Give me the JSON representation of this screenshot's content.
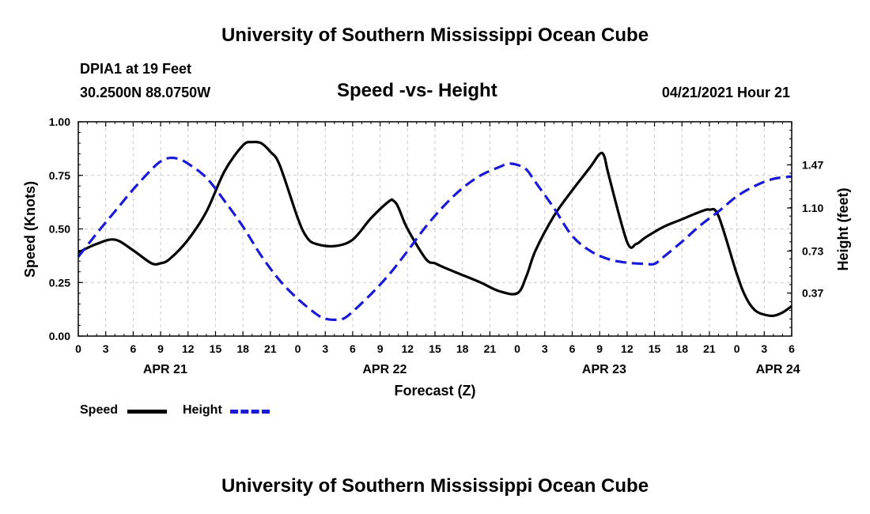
{
  "page": {
    "title_top": "University of Southern Mississippi Ocean Cube",
    "title_bottom": "University of Southern Mississippi Ocean Cube",
    "station": "DPIA1 at 19 Feet",
    "coordinates": "30.2500N  88.0750W",
    "subtitle": "Speed -vs- Height",
    "date_hour": "04/21/2021 Hour 21"
  },
  "colors": {
    "speed": "#000000",
    "height": "#1a1ad6",
    "grid": "#c8c8c8"
  },
  "chart_data": {
    "type": "line",
    "title": "Speed -vs- Height",
    "xlabel": "Forecast (Z)",
    "ylabel": "Speed (Knots)",
    "y2label": "Height (feet)",
    "x_unit": "hours from 2021-04-21 00Z",
    "xlim": [
      0,
      78
    ],
    "ylim": [
      0,
      1.0
    ],
    "y2lim": [
      0,
      1.84
    ],
    "x_ticks": [
      0,
      3,
      6,
      9,
      12,
      15,
      18,
      21,
      24,
      27,
      30,
      33,
      36,
      39,
      42,
      45,
      48,
      51,
      54,
      57,
      60,
      63,
      66,
      69,
      72,
      75,
      78
    ],
    "x_tick_labels": [
      "0",
      "3",
      "6",
      "9",
      "12",
      "15",
      "18",
      "21",
      "0",
      "3",
      "6",
      "9",
      "12",
      "15",
      "18",
      "21",
      "0",
      "3",
      "6",
      "9",
      "12",
      "15",
      "18",
      "21",
      "0",
      "3",
      "6"
    ],
    "y_ticks": [
      0,
      0.25,
      0.5,
      0.75,
      1.0
    ],
    "y_tick_labels": [
      "0.00",
      "0.25",
      "0.50",
      "0.75",
      "1.00"
    ],
    "y2_ticks": [
      0.37,
      0.73,
      1.1,
      1.47
    ],
    "y2_tick_labels": [
      "0.37",
      "0.73",
      "1.10",
      "1.47"
    ],
    "date_labels": [
      {
        "x": 9.5,
        "label": "APR 21"
      },
      {
        "x": 33.5,
        "label": "APR 22"
      },
      {
        "x": 57.5,
        "label": "APR 23"
      },
      {
        "x": 76.5,
        "label": "APR 24"
      }
    ],
    "grid": true,
    "legend_position": "bottom-left",
    "series": [
      {
        "name": "Speed",
        "axis": "left",
        "style": "solid",
        "x": [
          0,
          2,
          4,
          6,
          8,
          9,
          10,
          12,
          14,
          16,
          18,
          19,
          20,
          21,
          22,
          24,
          25,
          26,
          28,
          30,
          32,
          34,
          34.5,
          35,
          36,
          38,
          39,
          40,
          42,
          44,
          46,
          48,
          49,
          50,
          52,
          54,
          56,
          57,
          57.5,
          58,
          60,
          61,
          62,
          64,
          66,
          68,
          69,
          70,
          72,
          73,
          74,
          75,
          76,
          77,
          78
        ],
        "values": [
          0.39,
          0.43,
          0.45,
          0.4,
          0.34,
          0.34,
          0.36,
          0.45,
          0.58,
          0.77,
          0.89,
          0.905,
          0.9,
          0.86,
          0.8,
          0.55,
          0.46,
          0.43,
          0.42,
          0.45,
          0.55,
          0.63,
          0.63,
          0.6,
          0.5,
          0.36,
          0.34,
          0.32,
          0.285,
          0.25,
          0.21,
          0.2,
          0.28,
          0.4,
          0.56,
          0.68,
          0.79,
          0.85,
          0.84,
          0.75,
          0.44,
          0.43,
          0.46,
          0.51,
          0.545,
          0.58,
          0.59,
          0.56,
          0.29,
          0.18,
          0.12,
          0.1,
          0.095,
          0.11,
          0.14
        ]
      },
      {
        "name": "Height",
        "axis": "right",
        "style": "dashed",
        "x": [
          0,
          2,
          4,
          6,
          8,
          9,
          10,
          11,
          12,
          14,
          16,
          18,
          20,
          22,
          24,
          26,
          27,
          28,
          29,
          30,
          32,
          34,
          36,
          38,
          40,
          42,
          44,
          46,
          47,
          48,
          49,
          50,
          52,
          54,
          56,
          58,
          60,
          62,
          63,
          64,
          66,
          68,
          70,
          72,
          74,
          76,
          78
        ],
        "values": [
          0.68,
          0.88,
          1.07,
          1.26,
          1.43,
          1.5,
          1.53,
          1.52,
          1.48,
          1.36,
          1.16,
          0.94,
          0.69,
          0.48,
          0.32,
          0.19,
          0.15,
          0.14,
          0.15,
          0.21,
          0.36,
          0.53,
          0.73,
          0.94,
          1.12,
          1.27,
          1.38,
          1.45,
          1.48,
          1.47,
          1.43,
          1.32,
          1.1,
          0.86,
          0.73,
          0.66,
          0.63,
          0.62,
          0.62,
          0.68,
          0.81,
          0.95,
          1.07,
          1.2,
          1.29,
          1.35,
          1.37
        ]
      }
    ]
  },
  "legend": {
    "speed_label": "Speed",
    "height_label": "Height"
  }
}
